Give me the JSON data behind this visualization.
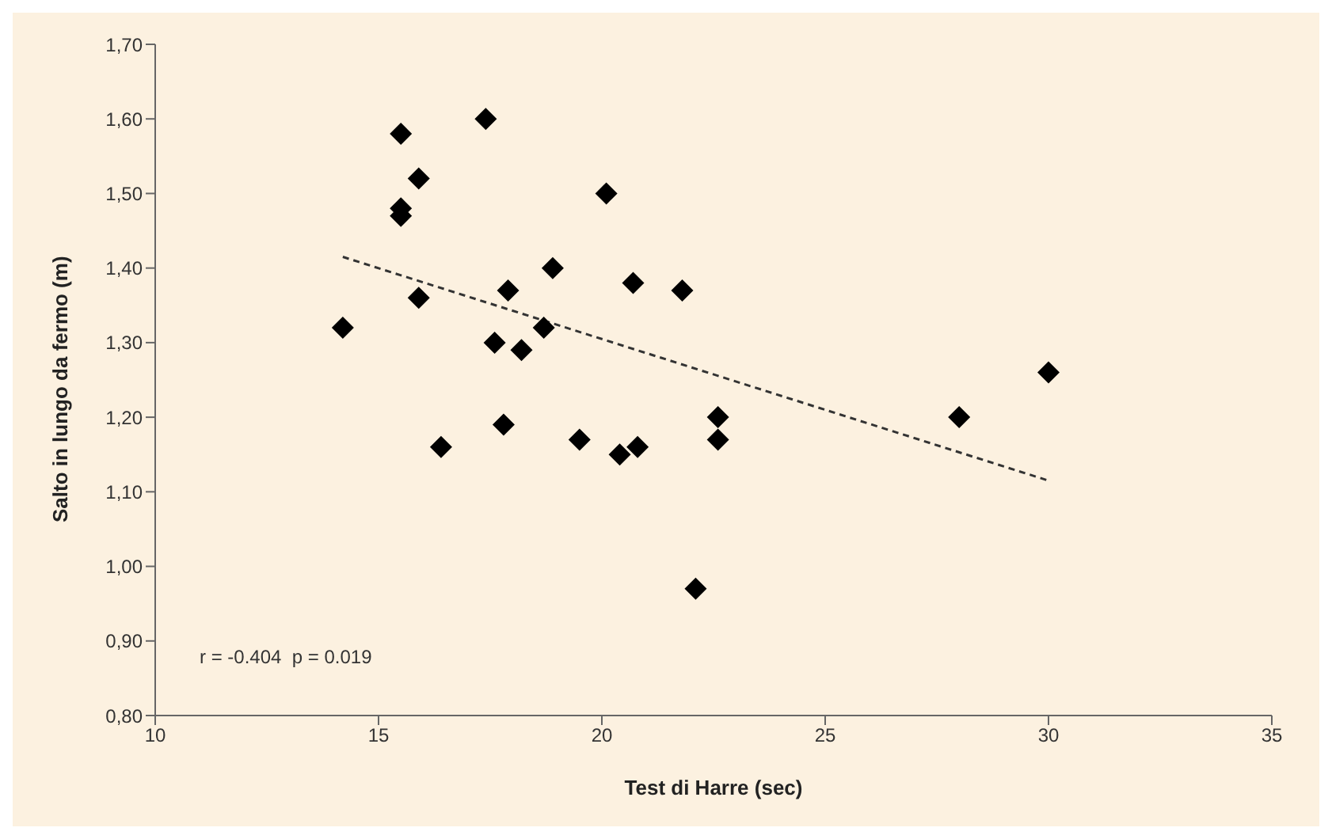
{
  "chart_data": {
    "type": "scatter",
    "xlabel": "Test di Harre (sec)",
    "ylabel": "Salto in lungo da fermo (m)",
    "marker": "diamond",
    "xlim": [
      10,
      35
    ],
    "xticks": [
      10,
      15,
      20,
      25,
      30,
      35
    ],
    "ylim": [
      0.8,
      1.7
    ],
    "yticks": [
      {
        "value": 0.8,
        "label": "0,80"
      },
      {
        "value": 0.9,
        "label": "0,90"
      },
      {
        "value": 1.0,
        "label": "1,00"
      },
      {
        "value": 1.1,
        "label": "1,10"
      },
      {
        "value": 1.2,
        "label": "1,20"
      },
      {
        "value": 1.3,
        "label": "1,30"
      },
      {
        "value": 1.4,
        "label": "1,40"
      },
      {
        "value": 1.5,
        "label": "1,50"
      },
      {
        "value": 1.6,
        "label": "1,60"
      },
      {
        "value": 1.7,
        "label": "1,70"
      }
    ],
    "grid": false,
    "legend": false,
    "annotations": [
      "r = -0.404  p = 0.019"
    ],
    "series": [
      {
        "color": "#000000",
        "x": [
          14.2,
          15.5,
          15.5,
          15.5,
          15.9,
          15.9,
          16.4,
          17.4,
          17.6,
          17.9,
          17.8,
          18.2,
          18.7,
          18.9,
          19.5,
          20.1,
          20.4,
          20.8,
          20.7,
          21.8,
          22.1,
          22.6,
          22.6,
          28.0,
          30.0
        ],
        "values": [
          1.32,
          1.58,
          1.47,
          1.48,
          1.52,
          1.36,
          1.16,
          1.6,
          1.3,
          1.37,
          1.19,
          1.29,
          1.32,
          1.4,
          1.17,
          1.5,
          1.15,
          1.16,
          1.38,
          1.37,
          0.97,
          1.2,
          1.17,
          1.2,
          1.26
        ]
      },
      {
        "type": "line",
        "color": "#333333",
        "line_style": "dashed",
        "marker": "none",
        "x": [
          14.2,
          30.0
        ],
        "values": [
          1.415,
          1.115
        ]
      }
    ]
  }
}
